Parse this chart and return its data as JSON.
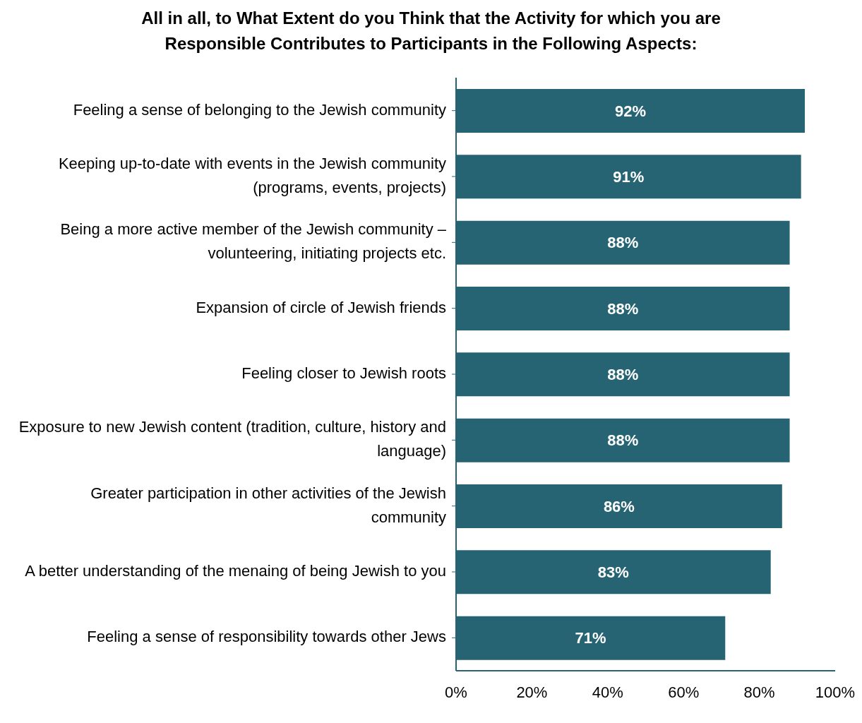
{
  "chart_data": {
    "type": "bar",
    "orientation": "horizontal",
    "title": "All in all, to What Extent do you Think that the Activity for which you are Responsible Contributes to Participants in the Following Aspects:",
    "categories": [
      "Feeling a sense of belonging to the Jewish community",
      "Keeping up-to-date with events in the Jewish community (programs, events, projects)",
      "Being a more active member of the Jewish community – volunteering, initiating projects etc.",
      "Expansion of circle of Jewish friends",
      "Feeling closer to Jewish roots",
      "Exposure to new Jewish content (tradition, culture, history and language)",
      "Greater participation in other activities of the Jewish community",
      "A better understanding of the menaing of being Jewish to you",
      "Feeling a sense of responsibility towards other Jews"
    ],
    "values": [
      92,
      91,
      88,
      88,
      88,
      88,
      86,
      83,
      71
    ],
    "value_labels": [
      "92%",
      "91%",
      "88%",
      "88%",
      "88%",
      "88%",
      "86%",
      "83%",
      "71%"
    ],
    "color": "#276473",
    "xlim": [
      0,
      100
    ],
    "xticks": [
      {
        "value": 0,
        "label": "0%"
      },
      {
        "value": 20,
        "label": "20%"
      },
      {
        "value": 40,
        "label": "40%"
      },
      {
        "value": 60,
        "label": "60%"
      },
      {
        "value": 80,
        "label": "80%"
      },
      {
        "value": 100,
        "label": "100%"
      }
    ],
    "grid": false
  }
}
